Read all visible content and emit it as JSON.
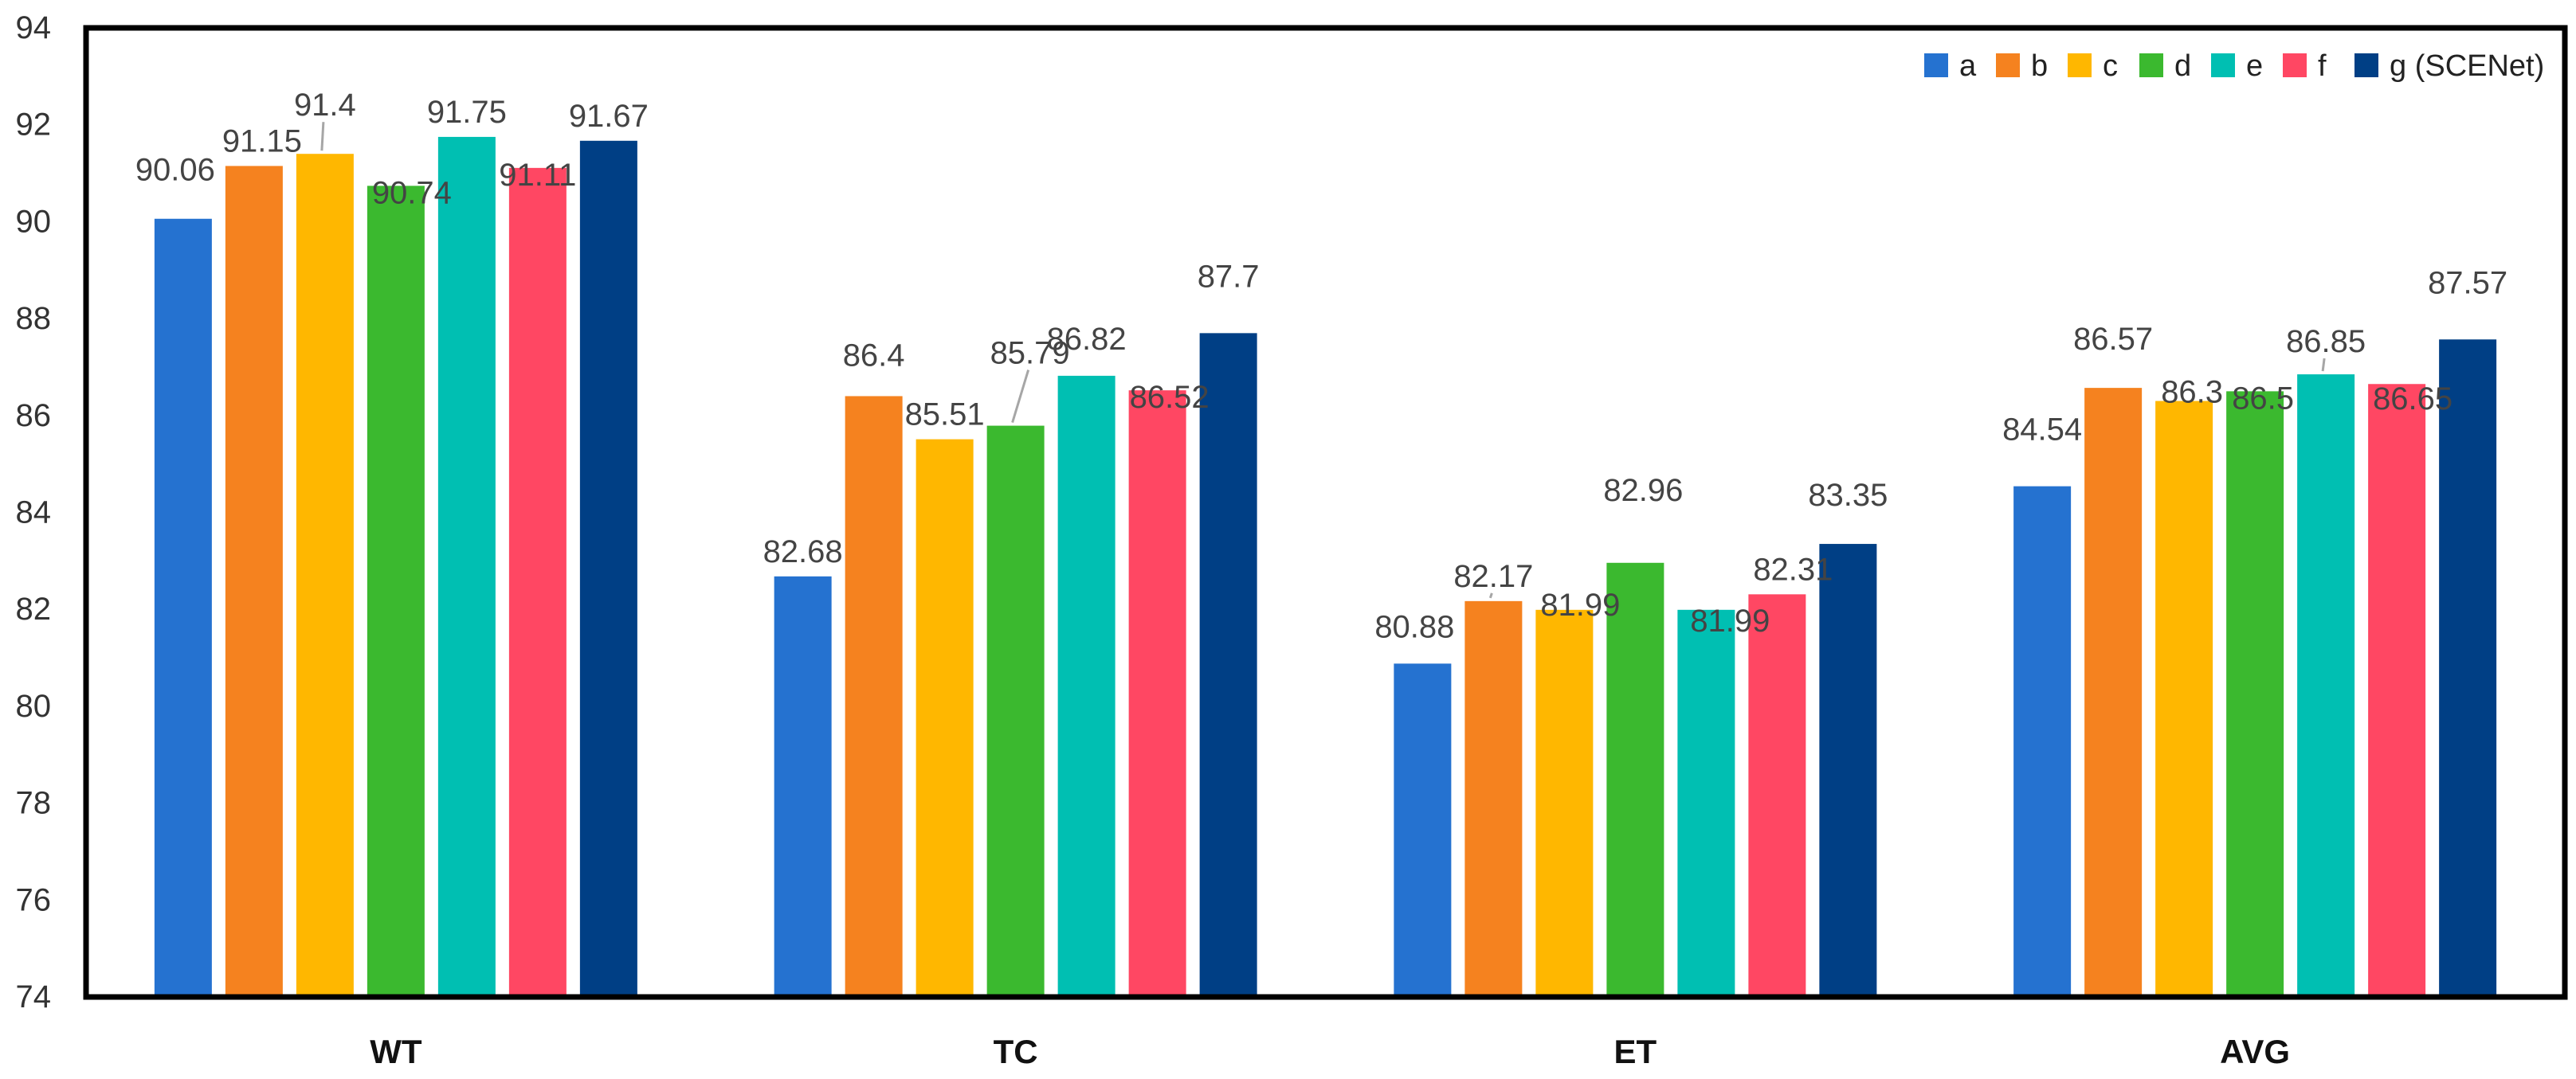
{
  "chart_data": {
    "type": "bar",
    "title": "",
    "xlabel": "",
    "ylabel": "",
    "ylim": [
      74,
      94
    ],
    "yticks": [
      74,
      76,
      78,
      80,
      82,
      84,
      86,
      88,
      90,
      92,
      94
    ],
    "grid": false,
    "legend_position": "top-right",
    "categories": [
      "WT",
      "TC",
      "ET",
      "AVG"
    ],
    "series": [
      {
        "name": "a",
        "color": "#2572D0",
        "values": [
          90.06,
          82.68,
          80.88,
          84.54
        ]
      },
      {
        "name": "b",
        "color": "#F5821F",
        "values": [
          91.15,
          86.4,
          82.17,
          86.57
        ]
      },
      {
        "name": "c",
        "color": "#FFB700",
        "values": [
          91.4,
          85.51,
          81.99,
          86.3
        ]
      },
      {
        "name": "d",
        "color": "#3BB92F",
        "values": [
          90.74,
          85.79,
          82.96,
          86.5
        ]
      },
      {
        "name": "e",
        "color": "#00BFB2",
        "values": [
          91.75,
          86.82,
          81.99,
          86.85
        ]
      },
      {
        "name": "f",
        "color": "#FF4763",
        "values": [
          91.11,
          86.52,
          82.31,
          86.65
        ]
      },
      {
        "name": "g (SCENet)",
        "color": "#003F85",
        "values": [
          91.67,
          87.7,
          83.35,
          87.57
        ]
      }
    ]
  }
}
